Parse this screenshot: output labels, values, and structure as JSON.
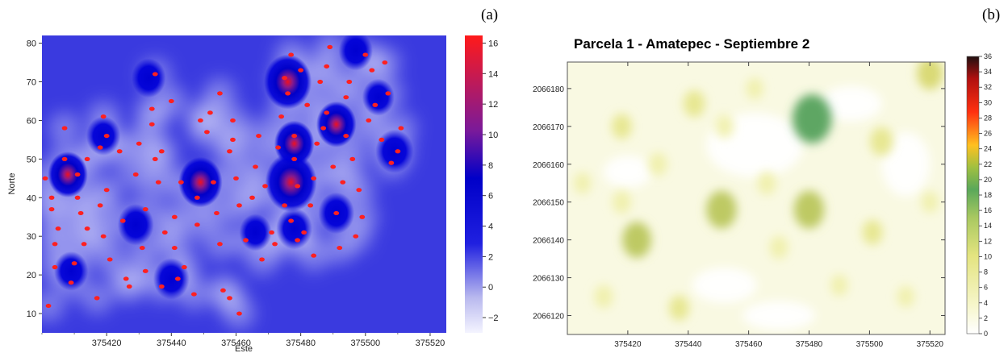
{
  "panels": {
    "a": {
      "letter": "(a)",
      "chart_data": {
        "type": "heatmap",
        "xlabel": "Este",
        "ylabel": "Norte",
        "xlim": [
          375400,
          375525
        ],
        "ylim": [
          5,
          82
        ],
        "xticks": [
          375420,
          375440,
          375460,
          375480,
          375500,
          375520
        ],
        "yticks": [
          10,
          20,
          30,
          40,
          50,
          60,
          70,
          80
        ],
        "colorbar": {
          "ticks": [
            -2,
            0,
            2,
            4,
            6,
            8,
            10,
            12,
            14,
            16
          ],
          "min": -3,
          "max": 16.5
        },
        "colors": {
          "background": "#3a3adf",
          "low": "#f4f4ff",
          "mid": "#0000cc",
          "high": "#ff1a1a",
          "point": "#ff2020"
        },
        "hotspots": [
          {
            "x": 375408,
            "y": 46,
            "v": 9
          },
          {
            "x": 375419,
            "y": 56,
            "v": 6
          },
          {
            "x": 375433,
            "y": 71,
            "v": 6
          },
          {
            "x": 375429,
            "y": 33,
            "v": 7
          },
          {
            "x": 375409,
            "y": 21,
            "v": 6
          },
          {
            "x": 375440,
            "y": 19,
            "v": 7
          },
          {
            "x": 375449,
            "y": 44,
            "v": 11
          },
          {
            "x": 375466,
            "y": 31,
            "v": 5
          },
          {
            "x": 375476,
            "y": 70,
            "v": 13
          },
          {
            "x": 375478,
            "y": 54,
            "v": 9
          },
          {
            "x": 375477,
            "y": 44,
            "v": 15
          },
          {
            "x": 375478,
            "y": 32,
            "v": 7
          },
          {
            "x": 375491,
            "y": 59,
            "v": 9
          },
          {
            "x": 375497,
            "y": 78,
            "v": 6
          },
          {
            "x": 375504,
            "y": 66,
            "v": 5
          },
          {
            "x": 375509,
            "y": 52,
            "v": 8
          },
          {
            "x": 375491,
            "y": 36,
            "v": 7
          }
        ],
        "points": [
          [
            375401,
            45
          ],
          [
            375403,
            40
          ],
          [
            375403,
            37
          ],
          [
            375404,
            28
          ],
          [
            375404,
            22
          ],
          [
            375402,
            12
          ],
          [
            375405,
            32
          ],
          [
            375407,
            58
          ],
          [
            375407,
            50
          ],
          [
            375409,
            18
          ],
          [
            375410,
            23
          ],
          [
            375411,
            46
          ],
          [
            375411,
            40
          ],
          [
            375412,
            36
          ],
          [
            375413,
            28
          ],
          [
            375414,
            32
          ],
          [
            375414,
            50
          ],
          [
            375417,
            14
          ],
          [
            375418,
            53
          ],
          [
            375418,
            38
          ],
          [
            375420,
            42
          ],
          [
            375419,
            61
          ],
          [
            375420,
            56
          ],
          [
            375419,
            30
          ],
          [
            375421,
            24
          ],
          [
            375424,
            52
          ],
          [
            375425,
            34
          ],
          [
            375426,
            19
          ],
          [
            375427,
            17
          ],
          [
            375429,
            46
          ],
          [
            375430,
            54
          ],
          [
            375431,
            27
          ],
          [
            375432,
            21
          ],
          [
            375432,
            37
          ],
          [
            375434,
            59
          ],
          [
            375434,
            63
          ],
          [
            375435,
            72
          ],
          [
            375435,
            50
          ],
          [
            375436,
            44
          ],
          [
            375437,
            17
          ],
          [
            375437,
            52
          ],
          [
            375438,
            31
          ],
          [
            375440,
            65
          ],
          [
            375441,
            27
          ],
          [
            375441,
            35
          ],
          [
            375442,
            19
          ],
          [
            375443,
            44
          ],
          [
            375444,
            22
          ],
          [
            375447,
            15
          ],
          [
            375448,
            33
          ],
          [
            375448,
            40
          ],
          [
            375449,
            60
          ],
          [
            375451,
            57
          ],
          [
            375452,
            62
          ],
          [
            375453,
            44
          ],
          [
            375454,
            36
          ],
          [
            375455,
            28
          ],
          [
            375455,
            67
          ],
          [
            375456,
            16
          ],
          [
            375458,
            14
          ],
          [
            375458,
            52
          ],
          [
            375459,
            55
          ],
          [
            375459,
            60
          ],
          [
            375460,
            45
          ],
          [
            375461,
            10
          ],
          [
            375461,
            38
          ],
          [
            375463,
            29
          ],
          [
            375465,
            40
          ],
          [
            375466,
            48
          ],
          [
            375467,
            56
          ],
          [
            375468,
            24
          ],
          [
            375469,
            43
          ],
          [
            375471,
            31
          ],
          [
            375472,
            28
          ],
          [
            375473,
            53
          ],
          [
            375474,
            61
          ],
          [
            375475,
            71
          ],
          [
            375475,
            38
          ],
          [
            375476,
            67
          ],
          [
            375477,
            77
          ],
          [
            375477,
            34
          ],
          [
            375478,
            56
          ],
          [
            375478,
            50
          ],
          [
            375479,
            43
          ],
          [
            375479,
            29
          ],
          [
            375480,
            73
          ],
          [
            375481,
            31
          ],
          [
            375482,
            64
          ],
          [
            375483,
            38
          ],
          [
            375484,
            45
          ],
          [
            375484,
            25
          ],
          [
            375485,
            54
          ],
          [
            375486,
            70
          ],
          [
            375487,
            58
          ],
          [
            375488,
            62
          ],
          [
            375488,
            74
          ],
          [
            375489,
            79
          ],
          [
            375490,
            48
          ],
          [
            375491,
            36
          ],
          [
            375492,
            27
          ],
          [
            375493,
            44
          ],
          [
            375494,
            66
          ],
          [
            375494,
            56
          ],
          [
            375495,
            70
          ],
          [
            375496,
            50
          ],
          [
            375497,
            30
          ],
          [
            375498,
            42
          ],
          [
            375499,
            35
          ],
          [
            375500,
            77
          ],
          [
            375501,
            60
          ],
          [
            375502,
            73
          ],
          [
            375503,
            64
          ],
          [
            375505,
            55
          ],
          [
            375506,
            75
          ],
          [
            375507,
            67
          ],
          [
            375508,
            49
          ],
          [
            375510,
            52
          ],
          [
            375511,
            58
          ]
        ]
      }
    },
    "b": {
      "letter": "(b)",
      "chart_data": {
        "type": "heatmap",
        "title": "Parcela 1 - Amatepec - Septiembre 2",
        "xlim": [
          375400,
          375525
        ],
        "ylim": [
          2066115,
          2066187
        ],
        "xticks": [
          375420,
          375440,
          375460,
          375480,
          375500,
          375520
        ],
        "yticks": [
          2066120,
          2066130,
          2066140,
          2066150,
          2066160,
          2066170,
          2066180
        ],
        "colorbar": {
          "ticks": [
            0,
            2,
            4,
            6,
            8,
            10,
            12,
            14,
            16,
            18,
            20,
            22,
            24,
            26,
            28,
            30,
            32,
            34,
            36
          ],
          "min": 0,
          "max": 36
        },
        "colors": {
          "background": "#f9f9e2",
          "low": "#ffffff",
          "yellow": "#eeee88",
          "green": "#4a9a4a",
          "red": "#ff2a10",
          "dark": "#1a1010"
        },
        "patches": [
          {
            "x": 375481,
            "y": 2066172,
            "v": 18
          },
          {
            "x": 375451,
            "y": 2066148,
            "v": 12
          },
          {
            "x": 375480,
            "y": 2066148,
            "v": 12
          },
          {
            "x": 375423,
            "y": 2066140,
            "v": 11
          },
          {
            "x": 375520,
            "y": 2066184,
            "v": 9
          },
          {
            "x": 375442,
            "y": 2066176,
            "v": 6
          },
          {
            "x": 375418,
            "y": 2066170,
            "v": 5
          },
          {
            "x": 375504,
            "y": 2066166,
            "v": 7
          },
          {
            "x": 375437,
            "y": 2066122,
            "v": 5
          },
          {
            "x": 375412,
            "y": 2066125,
            "v": 4
          },
          {
            "x": 375466,
            "y": 2066155,
            "v": 4
          },
          {
            "x": 375501,
            "y": 2066142,
            "v": 5
          },
          {
            "x": 375418,
            "y": 2066150,
            "v": 4
          },
          {
            "x": 375490,
            "y": 2066128,
            "v": 3
          },
          {
            "x": 375470,
            "y": 2066138,
            "v": 4
          },
          {
            "x": 375520,
            "y": 2066150,
            "v": 3
          },
          {
            "x": 375405,
            "y": 2066155,
            "v": 3
          },
          {
            "x": 375452,
            "y": 2066170,
            "v": 4
          },
          {
            "x": 375462,
            "y": 2066180,
            "v": 3
          },
          {
            "x": 375430,
            "y": 2066160,
            "v": 4
          },
          {
            "x": 375512,
            "y": 2066125,
            "v": 3
          }
        ]
      }
    }
  }
}
